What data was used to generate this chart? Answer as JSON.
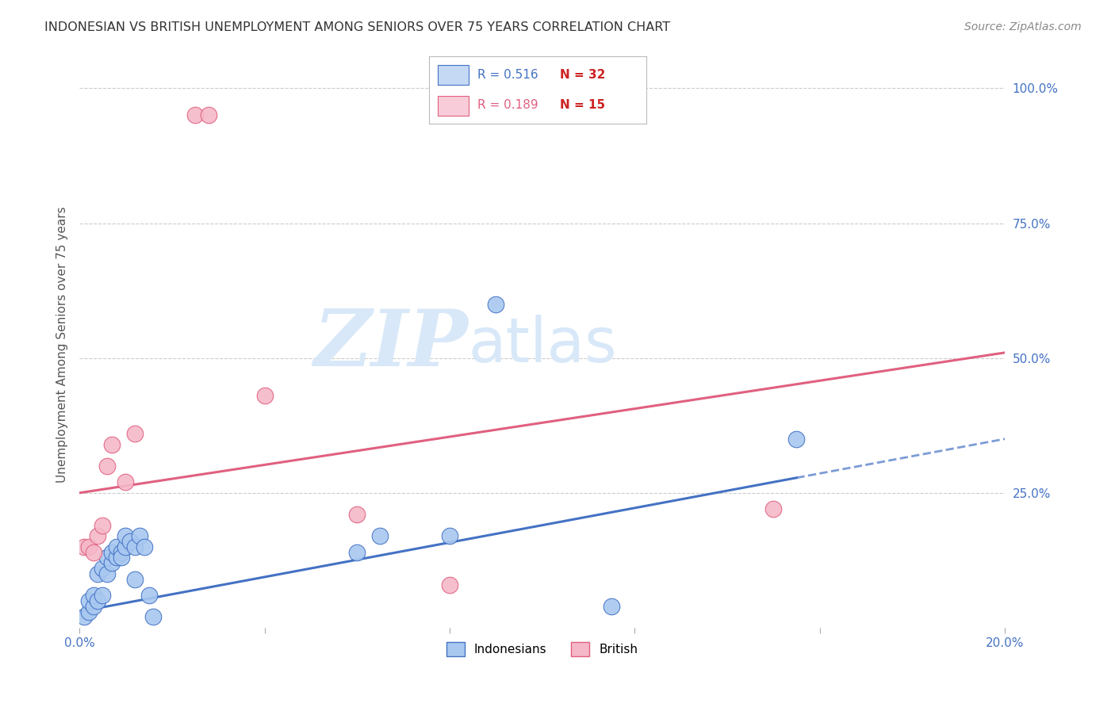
{
  "title": "INDONESIAN VS BRITISH UNEMPLOYMENT AMONG SENIORS OVER 75 YEARS CORRELATION CHART",
  "source": "Source: ZipAtlas.com",
  "xlabel": "",
  "ylabel": "Unemployment Among Seniors over 75 years",
  "xlim": [
    0.0,
    0.2
  ],
  "ylim": [
    0.0,
    1.05
  ],
  "xticks": [
    0.0,
    0.04,
    0.08,
    0.12,
    0.16,
    0.2
  ],
  "xticklabels": [
    "0.0%",
    "",
    "",
    "",
    "",
    "20.0%"
  ],
  "yticks_right": [
    0.0,
    0.25,
    0.5,
    0.75,
    1.0
  ],
  "yticklabels_right": [
    "",
    "25.0%",
    "50.0%",
    "75.0%",
    "100.0%"
  ],
  "indonesian_x": [
    0.001,
    0.002,
    0.002,
    0.003,
    0.003,
    0.004,
    0.004,
    0.005,
    0.005,
    0.006,
    0.006,
    0.007,
    0.007,
    0.008,
    0.008,
    0.009,
    0.009,
    0.01,
    0.01,
    0.011,
    0.012,
    0.012,
    0.013,
    0.014,
    0.015,
    0.016,
    0.06,
    0.065,
    0.08,
    0.09,
    0.115,
    0.155
  ],
  "indonesian_y": [
    0.02,
    0.03,
    0.05,
    0.04,
    0.06,
    0.05,
    0.1,
    0.06,
    0.11,
    0.1,
    0.13,
    0.12,
    0.14,
    0.13,
    0.15,
    0.14,
    0.13,
    0.15,
    0.17,
    0.16,
    0.15,
    0.09,
    0.17,
    0.15,
    0.06,
    0.02,
    0.14,
    0.17,
    0.17,
    0.6,
    0.04,
    0.35
  ],
  "british_x": [
    0.001,
    0.002,
    0.003,
    0.004,
    0.005,
    0.006,
    0.007,
    0.01,
    0.012,
    0.025,
    0.028,
    0.04,
    0.06,
    0.08,
    0.15
  ],
  "british_y": [
    0.15,
    0.15,
    0.14,
    0.17,
    0.19,
    0.3,
    0.34,
    0.27,
    0.36,
    0.95,
    0.95,
    0.43,
    0.21,
    0.08,
    0.22
  ],
  "indo_R": 0.516,
  "indo_N": 32,
  "brit_R": 0.189,
  "brit_N": 15,
  "indo_color": "#a8c8f0",
  "brit_color": "#f5b8c8",
  "indo_line_color": "#4472c4",
  "brit_line_color": "#e06080",
  "indo_trend_start_x": 0.0,
  "indo_trend_end_solid_x": 0.155,
  "indo_trend_end_dashed_x": 0.2,
  "brit_trend_start_x": 0.0,
  "brit_trend_end_x": 0.2,
  "watermark_zip": "ZIP",
  "watermark_atlas": "atlas",
  "watermark_color": "#d8e8f8",
  "grid_color": "#cccccc",
  "title_color": "#333333",
  "axis_color": "#4472c4",
  "legend_box_color_indo": "#c5d9f5",
  "legend_box_color_brit": "#f8ccd8"
}
